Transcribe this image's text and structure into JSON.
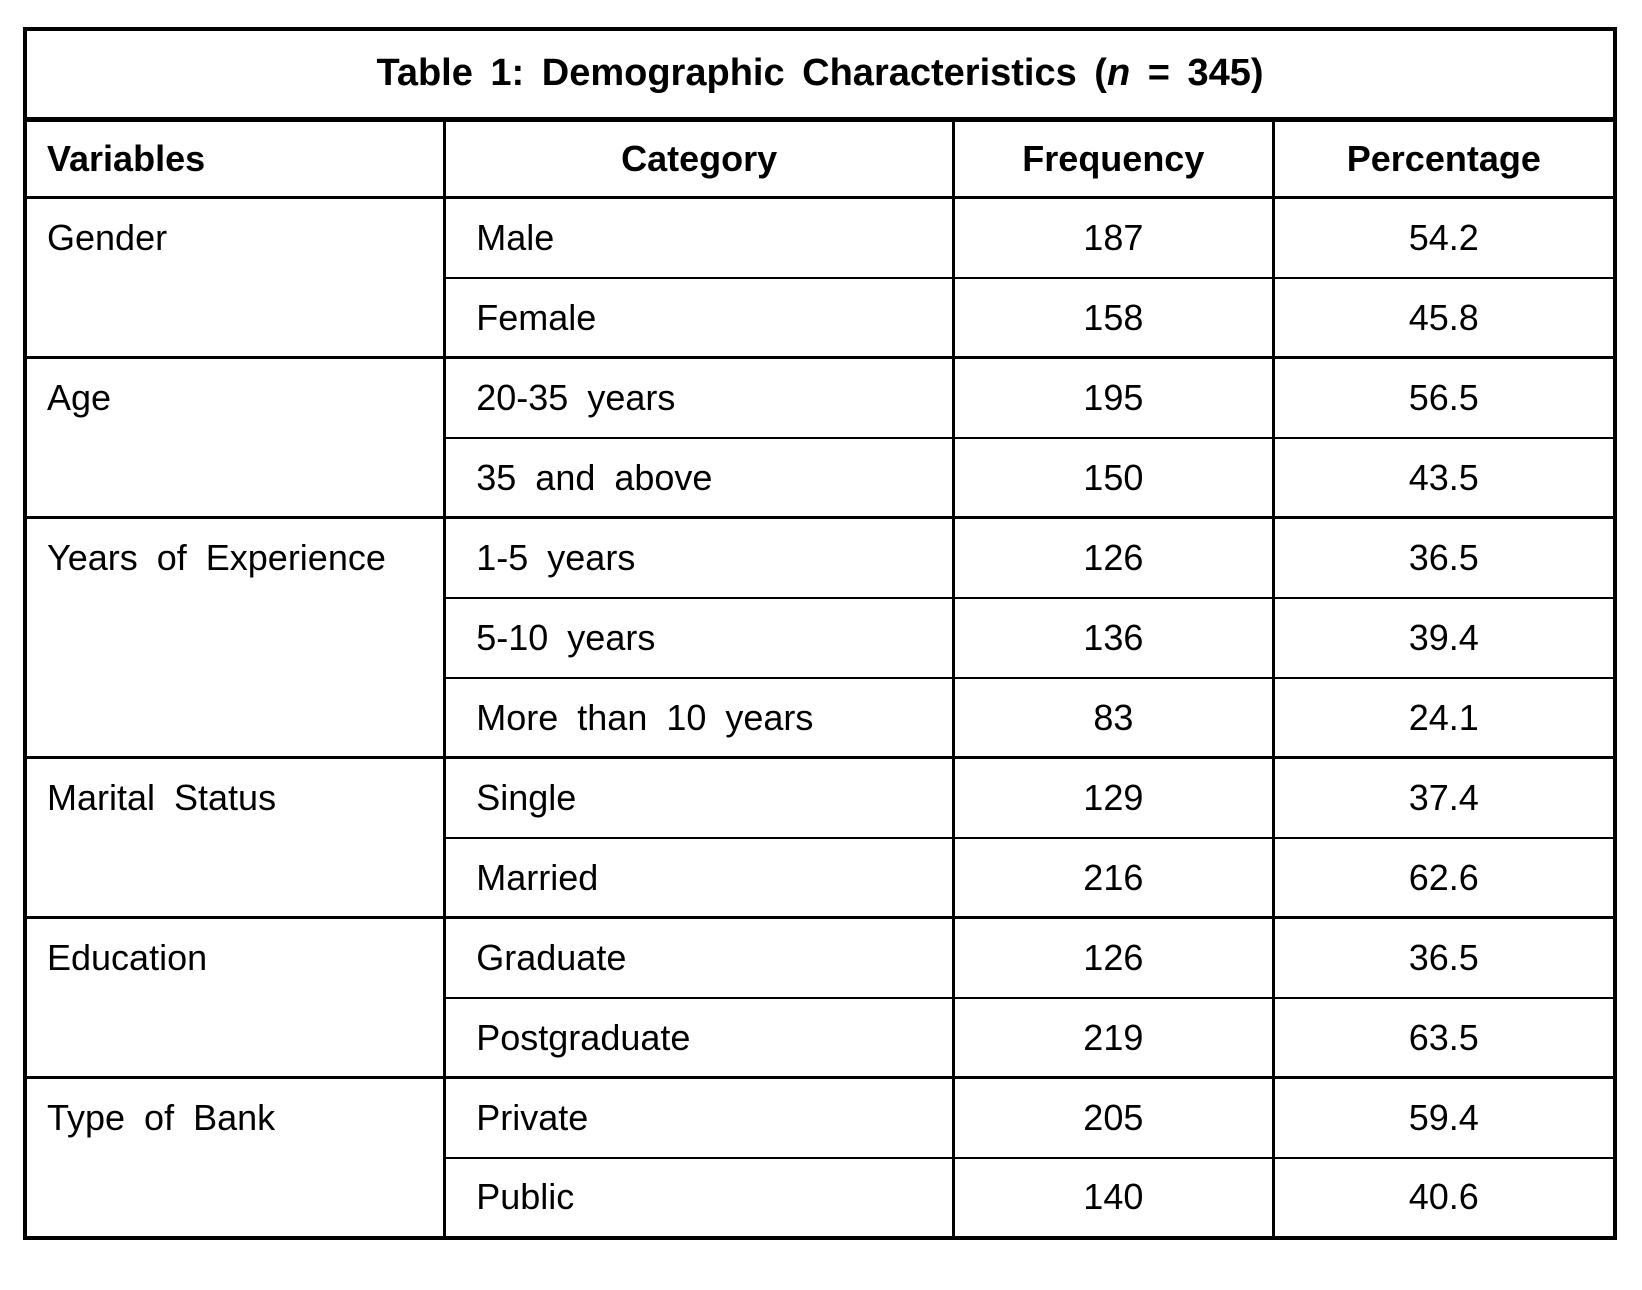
{
  "table": {
    "title": {
      "prefix": "Table 1: Demographic Characteristics (",
      "n": "n",
      "suffix": " = 345)"
    },
    "columns": [
      "Variables",
      "Category",
      "Frequency",
      "Percentage"
    ],
    "groups": [
      {
        "variable": "Gender",
        "rows": [
          {
            "category": "Male",
            "frequency": "187",
            "percentage": "54.2"
          },
          {
            "category": "Female",
            "frequency": "158",
            "percentage": "45.8"
          }
        ]
      },
      {
        "variable": "Age",
        "rows": [
          {
            "category": "20-35 years",
            "frequency": "195",
            "percentage": "56.5"
          },
          {
            "category": "35 and above",
            "frequency": "150",
            "percentage": "43.5"
          }
        ]
      },
      {
        "variable": "Years of Experience",
        "rows": [
          {
            "category": "1-5 years",
            "frequency": "126",
            "percentage": "36.5"
          },
          {
            "category": "5-10 years",
            "frequency": "136",
            "percentage": "39.4"
          },
          {
            "category": "More than 10 years",
            "frequency": "83",
            "percentage": "24.1"
          }
        ]
      },
      {
        "variable": "Marital Status",
        "rows": [
          {
            "category": "Single",
            "frequency": "129",
            "percentage": "37.4"
          },
          {
            "category": "Married",
            "frequency": "216",
            "percentage": "62.6"
          }
        ]
      },
      {
        "variable": "Education",
        "rows": [
          {
            "category": "Graduate",
            "frequency": "126",
            "percentage": "36.5"
          },
          {
            "category": "Postgraduate",
            "frequency": "219",
            "percentage": "63.5"
          }
        ]
      },
      {
        "variable": "Type of Bank",
        "rows": [
          {
            "category": "Private",
            "frequency": "205",
            "percentage": "59.4"
          },
          {
            "category": "Public",
            "frequency": "140",
            "percentage": "40.6"
          }
        ]
      }
    ]
  }
}
